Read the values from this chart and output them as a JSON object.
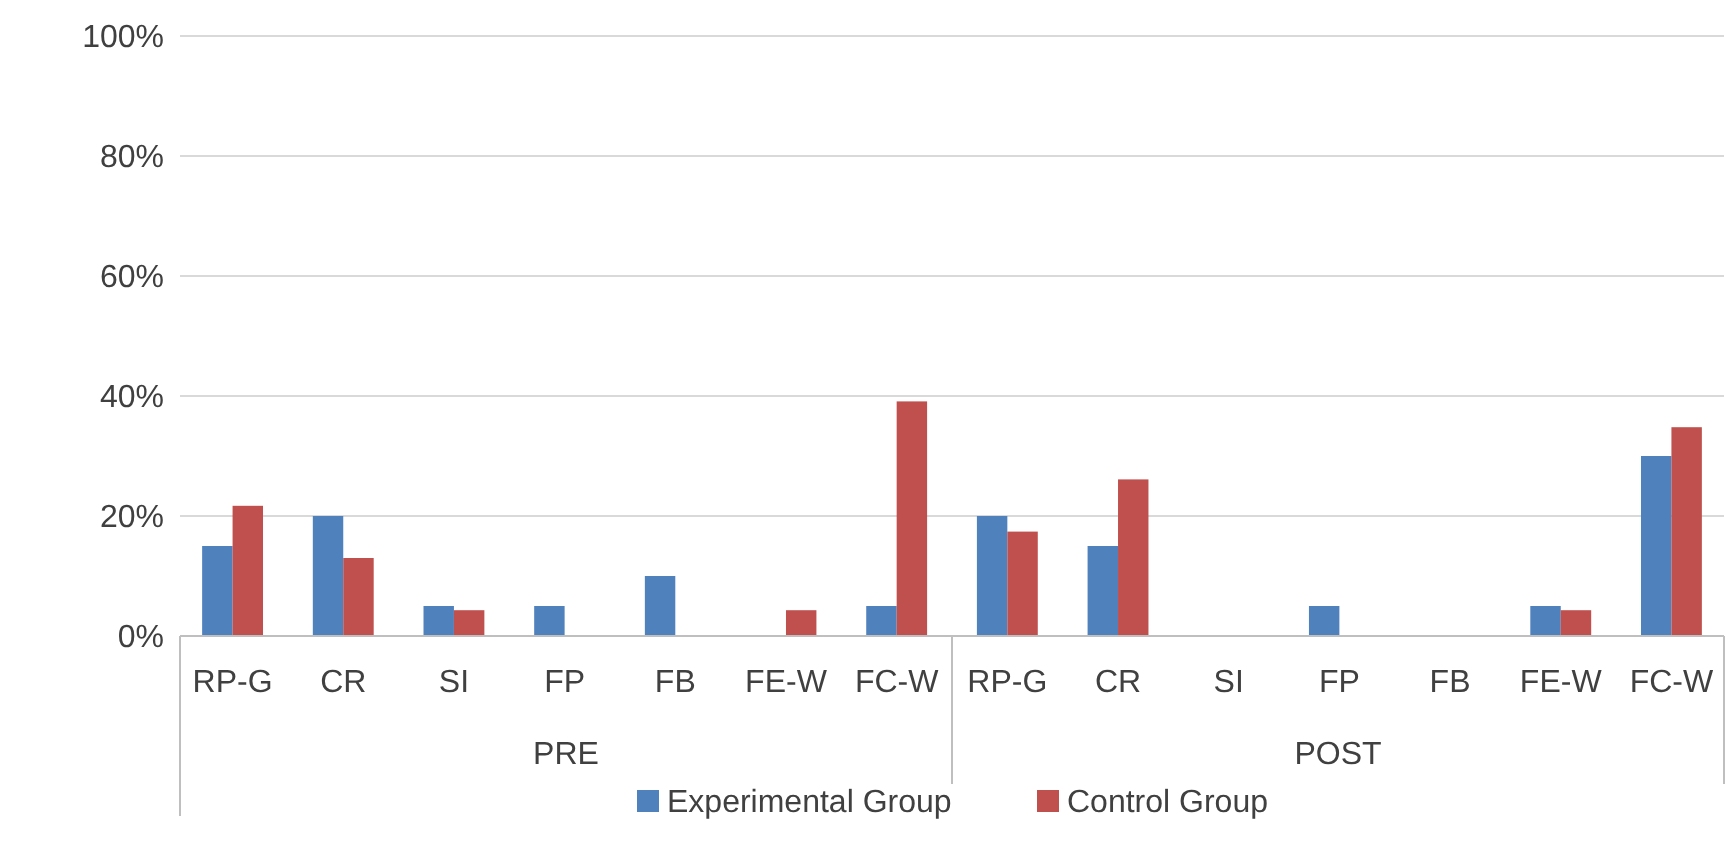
{
  "chart_data": {
    "type": "bar",
    "categories": [
      "RP-G",
      "CR",
      "SI",
      "FP",
      "FB",
      "FE-W",
      "FC-W",
      "RP-G",
      "CR",
      "SI",
      "FP",
      "FB",
      "FE-W",
      "FC-W"
    ],
    "annotations": [
      "PRE",
      "POST"
    ],
    "series": [
      {
        "name": "Experimental Group",
        "color": "#4f81bd",
        "values": [
          15,
          20,
          5,
          5,
          10,
          0,
          5,
          20,
          15,
          0,
          5,
          0,
          5,
          30
        ]
      },
      {
        "name": "Control Group",
        "color": "#c0504d",
        "values": [
          21.7,
          13,
          4.3,
          0,
          0,
          4.3,
          39.1,
          17.4,
          26.1,
          0,
          0,
          0,
          4.3,
          34.8
        ]
      }
    ],
    "ylim": [
      0,
      100
    ],
    "yticks": [
      {
        "value": 0,
        "label": "0%"
      },
      {
        "value": 20,
        "label": "20%"
      },
      {
        "value": 40,
        "label": "40%"
      },
      {
        "value": 60,
        "label": "60%"
      },
      {
        "value": 80,
        "label": "80%"
      },
      {
        "value": 100,
        "label": "100%"
      }
    ],
    "grid": "y",
    "legend": "bottom"
  }
}
